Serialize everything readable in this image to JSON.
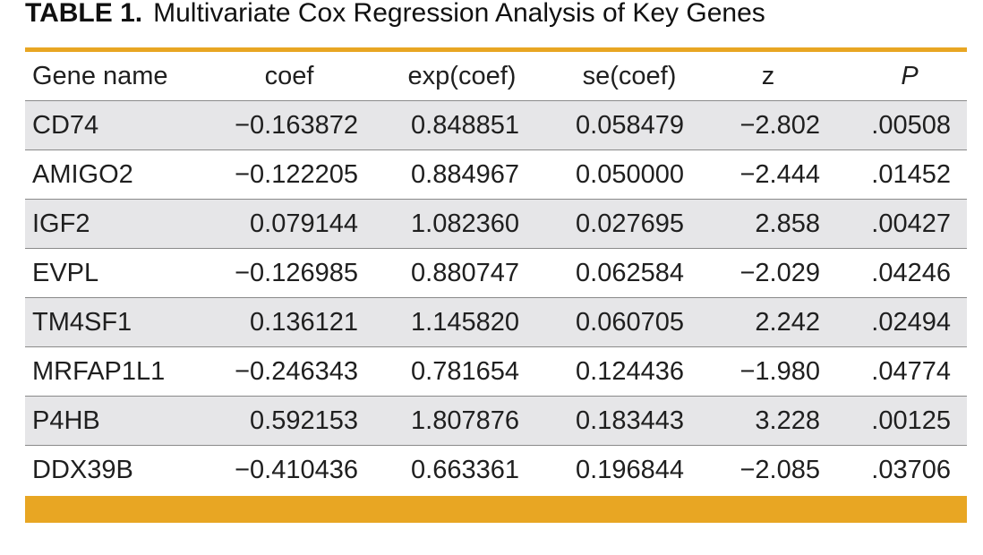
{
  "title": {
    "label": "TABLE 1.",
    "text": "Multivariate Cox Regression Analysis of Key Genes"
  },
  "accent_color": "#e8a623",
  "row_shade_color": "#e6e6e8",
  "table": {
    "headers": [
      "Gene name",
      "coef",
      "exp(coef)",
      "se(coef)",
      "z",
      "P"
    ],
    "rows": [
      [
        "CD74",
        "−0.163872",
        "0.848851",
        "0.058479",
        "−2.802",
        ".00508"
      ],
      [
        "AMIGO2",
        "−0.122205",
        "0.884967",
        "0.050000",
        "−2.444",
        ".01452"
      ],
      [
        "IGF2",
        "0.079144",
        "1.082360",
        "0.027695",
        "2.858",
        ".00427"
      ],
      [
        "EVPL",
        "−0.126985",
        "0.880747",
        "0.062584",
        "−2.029",
        ".04246"
      ],
      [
        "TM4SF1",
        "0.136121",
        "1.145820",
        "0.060705",
        "2.242",
        ".02494"
      ],
      [
        "MRFAP1L1",
        "−0.246343",
        "0.781654",
        "0.124436",
        "−1.980",
        ".04774"
      ],
      [
        "P4HB",
        "0.592153",
        "1.807876",
        "0.183443",
        "3.228",
        ".00125"
      ],
      [
        "DDX39B",
        "−0.410436",
        "0.663361",
        "0.196844",
        "−2.085",
        ".03706"
      ]
    ]
  }
}
